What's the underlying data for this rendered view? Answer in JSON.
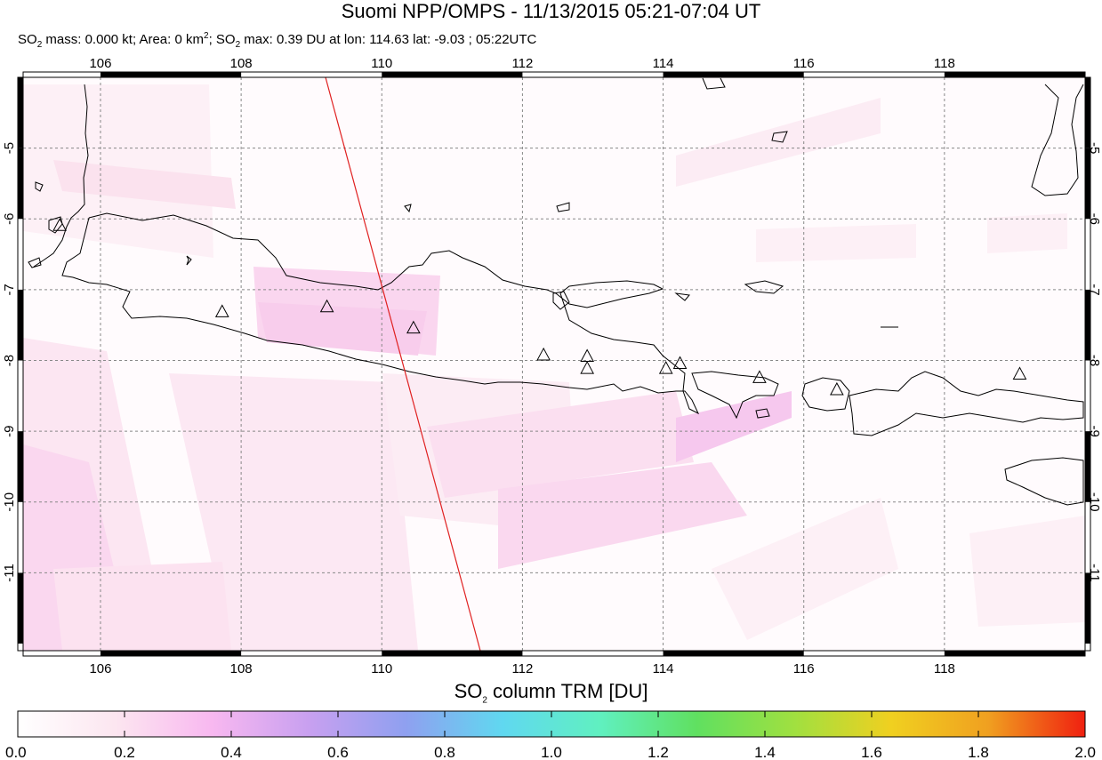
{
  "header": {
    "title": "Suomi NPP/OMPS - 11/13/2015 05:21-07:04 UT",
    "stats": {
      "p1": "SO",
      "p1_sub": "2",
      "p2": " mass: 0.000 kt; Area: 0 km",
      "p2_sup": "2",
      "p3": "; SO",
      "p3_sub": "2",
      "p4": " max: 0.39 DU at lon: 114.63 lat: -9.03 ; 05:22UTC"
    }
  },
  "map": {
    "lon_range": [
      104.9,
      120.0
    ],
    "lat_range": [
      -12.1,
      -4.0
    ],
    "lon_ticks": [
      "106",
      "108",
      "110",
      "112",
      "114",
      "116",
      "118"
    ],
    "lat_ticks": [
      "-5",
      "-6",
      "-7",
      "-8",
      "-9",
      "-10",
      "-11"
    ],
    "orbit_line": {
      "lon": [
        109.2,
        111.4
      ],
      "lat": [
        -4.0,
        -12.1
      ],
      "color": "#e02020"
    },
    "volcanoes": [
      {
        "lon": 105.42,
        "lat": -6.1
      },
      {
        "lon": 107.73,
        "lat": -7.32
      },
      {
        "lon": 109.22,
        "lat": -7.25
      },
      {
        "lon": 110.45,
        "lat": -7.55
      },
      {
        "lon": 112.3,
        "lat": -7.93
      },
      {
        "lon": 112.92,
        "lat": -7.95
      },
      {
        "lon": 112.92,
        "lat": -8.12
      },
      {
        "lon": 114.04,
        "lat": -8.12
      },
      {
        "lon": 114.24,
        "lat": -8.05
      },
      {
        "lon": 115.37,
        "lat": -8.25
      },
      {
        "lon": 116.47,
        "lat": -8.42
      },
      {
        "lon": 119.07,
        "lat": -8.2
      }
    ]
  },
  "colorbar": {
    "title_main": "SO",
    "title_sub": "2",
    "title_rest": " column TRM [DU]",
    "ticks": [
      "0.0",
      "0.2",
      "0.4",
      "0.6",
      "0.8",
      "1.0",
      "1.2",
      "1.4",
      "1.6",
      "1.8",
      "2.0"
    ],
    "stops": [
      "#ffffff",
      "#fce6f0",
      "#f8b8f0",
      "#c8a0f0",
      "#8fa0f0",
      "#60d8f0",
      "#60f0c0",
      "#60e060",
      "#a0e040",
      "#f0d020",
      "#f0a020",
      "#f02010"
    ]
  }
}
